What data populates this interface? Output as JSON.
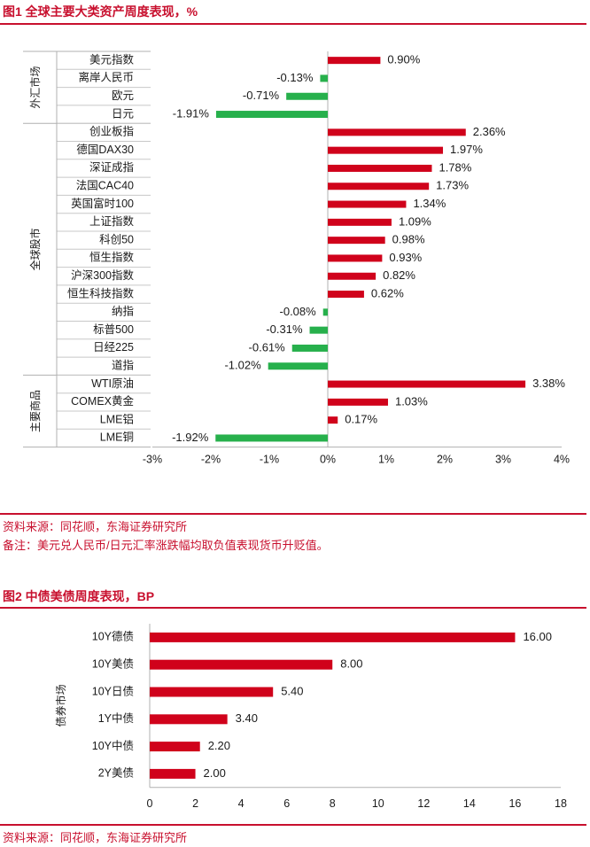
{
  "figure1": {
    "title": "图1  全球主要大类资产周度表现，%",
    "source": "资料来源：同花顺，东海证券研究所",
    "note": "备注：美元兑人民币/日元汇率涨跌幅均取负值表现货币升贬值。",
    "colors": {
      "positive": "#d0021b",
      "negative": "#27b04c",
      "title": "#c8102e"
    }
  },
  "figure2": {
    "title": "图2  中债美债周度表现，BP",
    "source": "资料来源：同花顺，东海证券研究所",
    "colors": {
      "bar": "#d0021b"
    }
  },
  "chart_data": [
    {
      "type": "bar",
      "orientation": "horizontal",
      "groups": [
        {
          "name": "外汇市场",
          "categories": [
            "美元指数",
            "离岸人民币",
            "欧元",
            "日元"
          ]
        },
        {
          "name": "全球股市",
          "categories": [
            "创业板指",
            "德国DAX30",
            "深证成指",
            "法国CAC40",
            "英国富时100",
            "上证指数",
            "科创50",
            "恒生指数",
            "沪深300指数",
            "恒生科技指数",
            "纳指",
            "标普500",
            "日经225",
            "道指"
          ]
        },
        {
          "name": "主要商品",
          "categories": [
            "WTI原油",
            "COMEX黄金",
            "LME铝",
            "LME铜"
          ]
        }
      ],
      "categories": [
        "美元指数",
        "离岸人民币",
        "欧元",
        "日元",
        "创业板指",
        "德国DAX30",
        "深证成指",
        "法国CAC40",
        "英国富时100",
        "上证指数",
        "科创50",
        "恒生指数",
        "沪深300指数",
        "恒生科技指数",
        "纳指",
        "标普500",
        "日经225",
        "道指",
        "WTI原油",
        "COMEX黄金",
        "LME铝",
        "LME铜"
      ],
      "values": [
        0.9,
        -0.13,
        -0.71,
        -1.91,
        2.36,
        1.97,
        1.78,
        1.73,
        1.34,
        1.09,
        0.98,
        0.93,
        0.82,
        0.62,
        -0.08,
        -0.31,
        -0.61,
        -1.02,
        3.38,
        1.03,
        0.17,
        -1.92
      ],
      "value_labels": [
        "0.90%",
        "-0.13%",
        "-0.71%",
        "-1.91%",
        "2.36%",
        "1.97%",
        "1.78%",
        "1.73%",
        "1.34%",
        "1.09%",
        "0.98%",
        "0.93%",
        "0.82%",
        "0.62%",
        "-0.08%",
        "-0.31%",
        "-0.61%",
        "-1.02%",
        "3.38%",
        "1.03%",
        "0.17%",
        "-1.92%"
      ],
      "xlim": [
        -3,
        4
      ],
      "xticks": [
        -3,
        -2,
        -1,
        0,
        1,
        2,
        3,
        4
      ],
      "xtick_labels": [
        "-3%",
        "-2%",
        "-1%",
        "0%",
        "1%",
        "2%",
        "3%",
        "4%"
      ],
      "grid": false,
      "legend": false
    },
    {
      "type": "bar",
      "orientation": "horizontal",
      "group": "债券市场",
      "categories": [
        "10Y德债",
        "10Y美债",
        "10Y日债",
        "1Y中债",
        "10Y中债",
        "2Y美债"
      ],
      "values": [
        16.0,
        8.0,
        5.4,
        3.4,
        2.2,
        2.0
      ],
      "value_labels": [
        "16.00",
        "8.00",
        "5.40",
        "3.40",
        "2.20",
        "2.00"
      ],
      "xlim": [
        0,
        18
      ],
      "xticks": [
        0,
        2,
        4,
        6,
        8,
        10,
        12,
        14,
        16,
        18
      ],
      "xtick_labels": [
        "0",
        "2",
        "4",
        "6",
        "8",
        "10",
        "12",
        "14",
        "16",
        "18"
      ],
      "grid": false,
      "legend": false
    }
  ]
}
